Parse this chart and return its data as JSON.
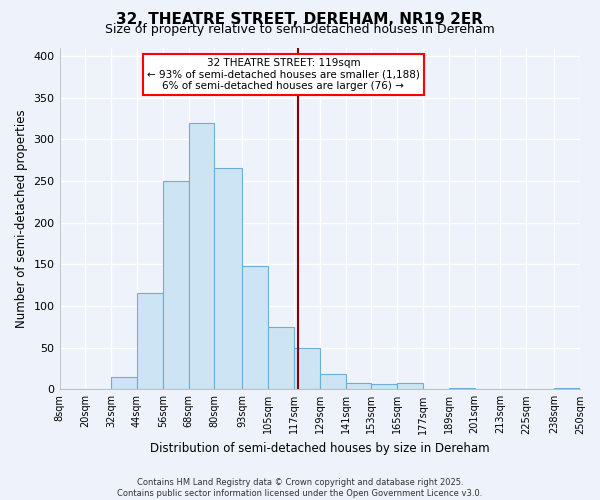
{
  "title": "32, THEATRE STREET, DEREHAM, NR19 2ER",
  "subtitle": "Size of property relative to semi-detached houses in Dereham",
  "xlabel": "Distribution of semi-detached houses by size in Dereham",
  "ylabel": "Number of semi-detached properties",
  "annotation_line1": "32 THEATRE STREET: 119sqm",
  "annotation_line2": "← 93% of semi-detached houses are smaller (1,188)",
  "annotation_line3": "6% of semi-detached houses are larger (76) →",
  "property_size": 119,
  "bar_color": "#cde4f5",
  "bar_edge_color": "#6baed6",
  "vline_color": "#8b0000",
  "background_color": "#eef2fa",
  "grid_color": "#ffffff",
  "footnote1": "Contains HM Land Registry data © Crown copyright and database right 2025.",
  "footnote2": "Contains public sector information licensed under the Open Government Licence v3.0.",
  "bin_edges": [
    8,
    20,
    32,
    44,
    56,
    68,
    80,
    93,
    105,
    117,
    129,
    141,
    153,
    165,
    177,
    189,
    201,
    213,
    225,
    238,
    250
  ],
  "bin_labels": [
    "8sqm",
    "20sqm",
    "32sqm",
    "44sqm",
    "56sqm",
    "68sqm",
    "80sqm",
    "93sqm",
    "105sqm",
    "117sqm",
    "129sqm",
    "141sqm",
    "153sqm",
    "165sqm",
    "177sqm",
    "189sqm",
    "201sqm",
    "213sqm",
    "225sqm",
    "238sqm",
    "250sqm"
  ],
  "counts": [
    0,
    0,
    15,
    115,
    250,
    320,
    265,
    148,
    75,
    50,
    18,
    8,
    6,
    8,
    0,
    2,
    0,
    0,
    0,
    1
  ]
}
